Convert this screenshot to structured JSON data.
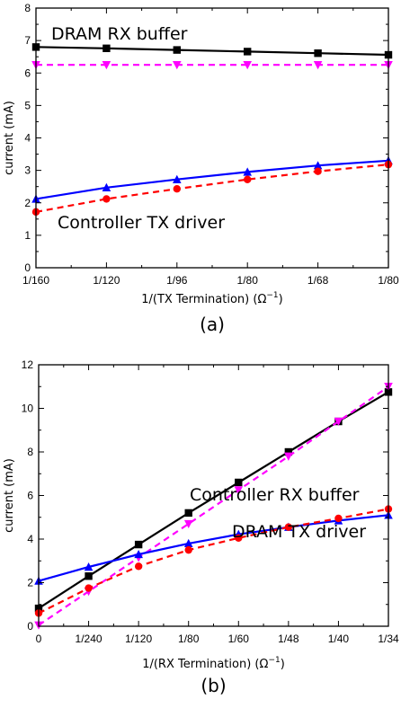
{
  "chart_data": [
    {
      "type": "line",
      "caption": "(a)",
      "xlabel_main": "1/(TX Termination) (",
      "xlabel_unit": "Ω",
      "xlabel_sup": "−1",
      "xlabel_close": ")",
      "ylabel": "current (mA)",
      "categories": [
        "1/160",
        "1/120",
        "1/96",
        "1/80",
        "1/68",
        "1/80"
      ],
      "x": [
        0,
        1,
        2,
        3,
        4,
        5
      ],
      "xlim": [
        0,
        5
      ],
      "ylim": [
        0,
        8
      ],
      "yticks": [
        0,
        1,
        2,
        3,
        4,
        5,
        6,
        7,
        8
      ],
      "grid": false,
      "annotations": [
        "DRAM RX buffer",
        "Controller TX driver"
      ],
      "series": [
        {
          "color": "#000000",
          "marker": "square",
          "dash": false,
          "values": [
            6.8,
            6.76,
            6.71,
            6.66,
            6.61,
            6.56
          ]
        },
        {
          "color": "#ff00ff",
          "marker": "triangle-down",
          "dash": true,
          "values": [
            6.25,
            6.25,
            6.25,
            6.25,
            6.25,
            6.25
          ]
        },
        {
          "color": "#0000ff",
          "marker": "triangle-up",
          "dash": false,
          "values": [
            2.12,
            2.47,
            2.72,
            2.95,
            3.15,
            3.3
          ]
        },
        {
          "color": "#ff0000",
          "marker": "circle",
          "dash": true,
          "values": [
            1.72,
            2.12,
            2.43,
            2.72,
            2.97,
            3.18
          ]
        }
      ]
    },
    {
      "type": "line",
      "caption": "(b)",
      "xlabel_main": "1/(RX Termination) (",
      "xlabel_unit": "Ω",
      "xlabel_sup": "−1",
      "xlabel_close": ")",
      "ylabel": "current (mA)",
      "categories": [
        "0",
        "1/240",
        "1/120",
        "1/80",
        "1/60",
        "1/48",
        "1/40",
        "1/34"
      ],
      "x": [
        0,
        1,
        2,
        3,
        4,
        5,
        6,
        7
      ],
      "xlim": [
        0,
        7
      ],
      "ylim": [
        0,
        12
      ],
      "yticks": [
        0,
        2,
        4,
        6,
        8,
        10,
        12
      ],
      "grid": false,
      "annotations": [
        "Controller RX buffer",
        "DRAM TX driver"
      ],
      "series": [
        {
          "color": "#000000",
          "marker": "square",
          "dash": false,
          "values": [
            0.82,
            2.3,
            3.75,
            5.2,
            6.6,
            8.0,
            9.4,
            10.75
          ]
        },
        {
          "color": "#ff00ff",
          "marker": "triangle-down",
          "dash": true,
          "values": [
            0.05,
            1.6,
            3.15,
            4.7,
            6.25,
            7.8,
            9.4,
            11.0
          ]
        },
        {
          "color": "#0000ff",
          "marker": "triangle-up",
          "dash": false,
          "values": [
            2.08,
            2.72,
            3.3,
            3.8,
            4.22,
            4.55,
            4.85,
            5.1
          ]
        },
        {
          "color": "#ff0000",
          "marker": "circle",
          "dash": true,
          "values": [
            0.6,
            1.75,
            2.75,
            3.5,
            4.05,
            4.55,
            4.95,
            5.38
          ]
        }
      ]
    }
  ]
}
